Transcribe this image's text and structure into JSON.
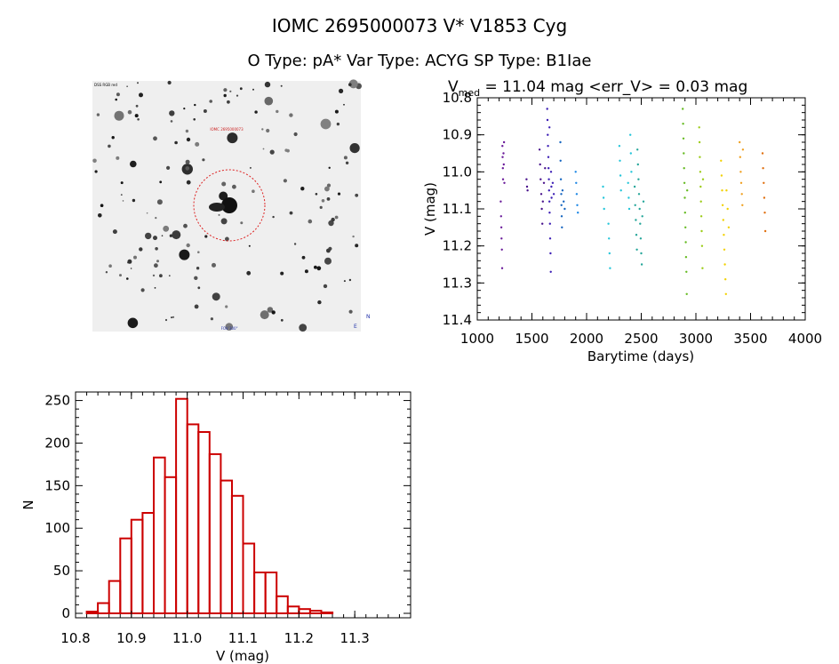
{
  "header": {
    "title": "IOMC 2695000073    V* V1853 Cyg",
    "subtitle": "O Type: pA*  Var Type: ACYG  SP Type: B1Iae"
  },
  "image_panel": {
    "corner_labels": [
      "DSS RGB red",
      "IOMC 2695000073",
      "FOV 300\"",
      "N",
      "E"
    ]
  },
  "lightcurve": {
    "stat_prefix": "V",
    "stat_subscript": "med",
    "stat_text": " = 11.04 mag <err_V> = 0.03 mag"
  },
  "chart_data": [
    {
      "type": "scatter",
      "xlabel": "Barytime (days)",
      "ylabel": "V (mag)",
      "xlim": [
        1000,
        4000
      ],
      "ylim": [
        11.4,
        10.8
      ],
      "y_inverted": true,
      "xticks": [
        1000,
        1500,
        2000,
        2500,
        3000,
        3500,
        4000
      ],
      "yticks": [
        10.8,
        10.9,
        11.0,
        11.1,
        11.2,
        11.3,
        11.4
      ],
      "series": [
        {
          "color": "#6a1b9a",
          "points": [
            [
              1230,
              10.93
            ],
            [
              1232,
              10.96
            ],
            [
              1234,
              10.99
            ],
            [
              1236,
              11.02
            ],
            [
              1240,
              10.95
            ],
            [
              1242,
              10.98
            ],
            [
              1215,
              11.08
            ],
            [
              1218,
              11.12
            ],
            [
              1220,
              11.15
            ],
            [
              1222,
              11.18
            ],
            [
              1225,
              11.21
            ],
            [
              1228,
              11.26
            ],
            [
              1245,
              10.92
            ],
            [
              1248,
              11.03
            ]
          ]
        },
        {
          "color": "#4a148c",
          "points": [
            [
              1450,
              11.02
            ],
            [
              1455,
              11.04
            ],
            [
              1460,
              11.05
            ],
            [
              1570,
              10.94
            ],
            [
              1575,
              10.98
            ],
            [
              1580,
              11.02
            ],
            [
              1585,
              11.06
            ],
            [
              1590,
              11.1
            ],
            [
              1595,
              11.14
            ],
            [
              1600,
              11.08
            ],
            [
              1610,
              11.03
            ],
            [
              1620,
              10.99
            ]
          ]
        },
        {
          "color": "#3d1fb5",
          "points": [
            [
              1640,
              10.83
            ],
            [
              1642,
              10.86
            ],
            [
              1645,
              10.9
            ],
            [
              1647,
              10.93
            ],
            [
              1650,
              10.96
            ],
            [
              1652,
              10.99
            ],
            [
              1655,
              11.02
            ],
            [
              1657,
              11.05
            ],
            [
              1660,
              11.08
            ],
            [
              1662,
              11.11
            ],
            [
              1665,
              11.14
            ],
            [
              1667,
              11.18
            ],
            [
              1670,
              11.22
            ],
            [
              1672,
              11.27
            ],
            [
              1675,
              11.0
            ],
            [
              1678,
              11.04
            ],
            [
              1680,
              11.07
            ],
            [
              1690,
              11.03
            ],
            [
              1700,
              11.06
            ],
            [
              1660,
              10.88
            ]
          ]
        },
        {
          "color": "#1565c0",
          "points": [
            [
              1760,
              10.92
            ],
            [
              1762,
              10.97
            ],
            [
              1765,
              11.02
            ],
            [
              1768,
              11.06
            ],
            [
              1770,
              11.09
            ],
            [
              1772,
              11.12
            ],
            [
              1775,
              11.15
            ],
            [
              1780,
              11.05
            ],
            [
              1790,
              11.08
            ],
            [
              1800,
              11.1
            ]
          ]
        },
        {
          "color": "#1e88e5",
          "points": [
            [
              1900,
              11.0
            ],
            [
              1905,
              11.03
            ],
            [
              1910,
              11.06
            ],
            [
              1915,
              11.09
            ],
            [
              1920,
              11.11
            ]
          ]
        },
        {
          "color": "#26c6da",
          "points": [
            [
              2150,
              11.04
            ],
            [
              2155,
              11.07
            ],
            [
              2160,
              11.1
            ],
            [
              2200,
              11.14
            ],
            [
              2205,
              11.18
            ],
            [
              2210,
              11.22
            ],
            [
              2215,
              11.26
            ],
            [
              2300,
              10.93
            ],
            [
              2305,
              10.97
            ],
            [
              2310,
              11.01
            ],
            [
              2315,
              11.05
            ],
            [
              2380,
              11.03
            ],
            [
              2385,
              11.07
            ],
            [
              2390,
              11.1
            ],
            [
              2400,
              10.9
            ],
            [
              2405,
              10.95
            ],
            [
              2410,
              11.0
            ]
          ]
        },
        {
          "color": "#26a69a",
          "points": [
            [
              2440,
              11.04
            ],
            [
              2445,
              11.09
            ],
            [
              2450,
              11.13
            ],
            [
              2455,
              11.17
            ],
            [
              2460,
              11.21
            ],
            [
              2465,
              10.94
            ],
            [
              2470,
              10.98
            ],
            [
              2475,
              11.02
            ],
            [
              2480,
              11.06
            ],
            [
              2485,
              11.1
            ],
            [
              2490,
              11.14
            ],
            [
              2495,
              11.18
            ],
            [
              2500,
              11.22
            ],
            [
              2505,
              11.25
            ],
            [
              2510,
              11.12
            ],
            [
              2520,
              11.08
            ]
          ]
        },
        {
          "color": "#66bb22",
          "points": [
            [
              2880,
              10.83
            ],
            [
              2883,
              10.87
            ],
            [
              2886,
              10.91
            ],
            [
              2889,
              10.95
            ],
            [
              2892,
              10.99
            ],
            [
              2895,
              11.03
            ],
            [
              2898,
              11.07
            ],
            [
              2901,
              11.11
            ],
            [
              2904,
              11.15
            ],
            [
              2907,
              11.19
            ],
            [
              2910,
              11.23
            ],
            [
              2913,
              11.27
            ],
            [
              2916,
              11.33
            ],
            [
              2920,
              11.05
            ]
          ]
        },
        {
          "color": "#9ccc18",
          "points": [
            [
              3030,
              10.88
            ],
            [
              3033,
              10.92
            ],
            [
              3036,
              10.96
            ],
            [
              3040,
              11.0
            ],
            [
              3043,
              11.04
            ],
            [
              3046,
              11.08
            ],
            [
              3050,
              11.12
            ],
            [
              3053,
              11.16
            ],
            [
              3056,
              11.2
            ],
            [
              3060,
              11.26
            ],
            [
              3065,
              11.02
            ]
          ]
        },
        {
          "color": "#f2d100",
          "points": [
            [
              3230,
              10.97
            ],
            [
              3235,
              11.01
            ],
            [
              3240,
              11.05
            ],
            [
              3245,
              11.09
            ],
            [
              3250,
              11.13
            ],
            [
              3255,
              11.17
            ],
            [
              3260,
              11.21
            ],
            [
              3265,
              11.25
            ],
            [
              3270,
              11.29
            ],
            [
              3275,
              11.33
            ],
            [
              3280,
              11.05
            ],
            [
              3290,
              11.1
            ],
            [
              3300,
              11.15
            ]
          ]
        },
        {
          "color": "#f0a020",
          "points": [
            [
              3400,
              10.92
            ],
            [
              3405,
              10.96
            ],
            [
              3410,
              11.0
            ],
            [
              3415,
              11.03
            ],
            [
              3420,
              11.06
            ],
            [
              3425,
              11.09
            ],
            [
              3430,
              10.94
            ]
          ]
        },
        {
          "color": "#e07010",
          "points": [
            [
              3610,
              10.95
            ],
            [
              3615,
              10.99
            ],
            [
              3620,
              11.03
            ],
            [
              3625,
              11.07
            ],
            [
              3630,
              11.11
            ],
            [
              3635,
              11.16
            ]
          ]
        }
      ]
    },
    {
      "type": "bar",
      "xlabel": "V (mag)",
      "ylabel": "N",
      "xlim": [
        10.8,
        11.4
      ],
      "ylim": [
        0,
        260
      ],
      "xticks": [
        10.8,
        10.9,
        11.0,
        11.1,
        11.2,
        11.3
      ],
      "yticks": [
        0,
        50,
        100,
        150,
        200,
        250
      ],
      "bin_width": 0.02,
      "bin_starts": [
        10.82,
        10.84,
        10.86,
        10.88,
        10.9,
        10.92,
        10.94,
        10.96,
        10.98,
        11.0,
        11.02,
        11.04,
        11.06,
        11.08,
        11.1,
        11.12,
        11.14,
        11.16,
        11.18,
        11.2,
        11.22,
        11.24,
        11.26,
        11.28,
        11.3,
        11.32
      ],
      "values": [
        2,
        12,
        38,
        88,
        110,
        118,
        183,
        160,
        252,
        222,
        213,
        187,
        156,
        138,
        82,
        48,
        48,
        20,
        8,
        5,
        3,
        1,
        0,
        0,
        0,
        0
      ],
      "bar_color": "#cc0000"
    }
  ]
}
